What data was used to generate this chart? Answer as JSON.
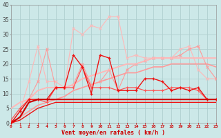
{
  "xlabel": "Vent moyen/en rafales ( km/h )",
  "background_color": "#cce8e8",
  "grid_color": "#b0d0d0",
  "x": [
    0,
    1,
    2,
    3,
    4,
    5,
    6,
    7,
    8,
    9,
    10,
    11,
    12,
    13,
    14,
    15,
    16,
    17,
    18,
    19,
    20,
    21,
    22,
    23
  ],
  "line_gust_light": [
    0,
    4,
    14,
    26,
    14,
    14,
    12,
    32,
    30,
    33,
    32,
    36,
    36,
    22,
    23,
    22,
    22,
    22,
    22,
    25,
    26,
    18,
    15,
    15
  ],
  "line_gust_med": [
    0,
    4,
    8,
    14,
    25,
    12,
    12,
    13,
    20,
    13,
    14,
    18,
    11,
    18,
    20,
    21,
    22,
    22,
    22,
    23,
    25,
    26,
    19,
    15
  ],
  "line_mean_light": [
    5,
    7,
    8,
    11,
    12,
    12,
    12,
    13,
    15,
    16,
    17,
    18,
    19,
    20,
    20,
    21,
    22,
    22,
    22,
    22,
    22,
    22,
    22,
    22
  ],
  "line_mean_med": [
    0,
    2,
    4,
    6,
    7,
    8,
    9,
    11,
    12,
    13,
    14,
    15,
    16,
    17,
    17,
    18,
    19,
    19,
    20,
    20,
    20,
    20,
    20,
    19
  ],
  "line_dark1": [
    0,
    4,
    8,
    8,
    8,
    12,
    12,
    23,
    19,
    10,
    23,
    22,
    11,
    11,
    11,
    15,
    15,
    14,
    11,
    12,
    11,
    12,
    8,
    8
  ],
  "line_dark2": [
    1,
    5,
    8,
    8,
    7,
    12,
    12,
    12,
    19,
    12,
    12,
    12,
    11,
    12,
    12,
    11,
    11,
    11,
    12,
    12,
    12,
    11,
    8,
    8
  ],
  "line_flat1": [
    0,
    2,
    7,
    8,
    8,
    8,
    8,
    8,
    8,
    8,
    8,
    8,
    8,
    8,
    8,
    8,
    8,
    8,
    8,
    8,
    8,
    8,
    8,
    8
  ],
  "line_flat2": [
    0,
    1,
    3,
    5,
    6,
    7,
    7,
    7,
    7,
    7,
    7,
    7,
    7,
    7,
    7,
    7,
    7,
    7,
    7,
    7,
    7,
    7,
    7,
    7
  ],
  "ylim": [
    0,
    40
  ],
  "xlim": [
    0,
    23
  ],
  "yticks": [
    0,
    5,
    10,
    15,
    20,
    25,
    30,
    35,
    40
  ]
}
